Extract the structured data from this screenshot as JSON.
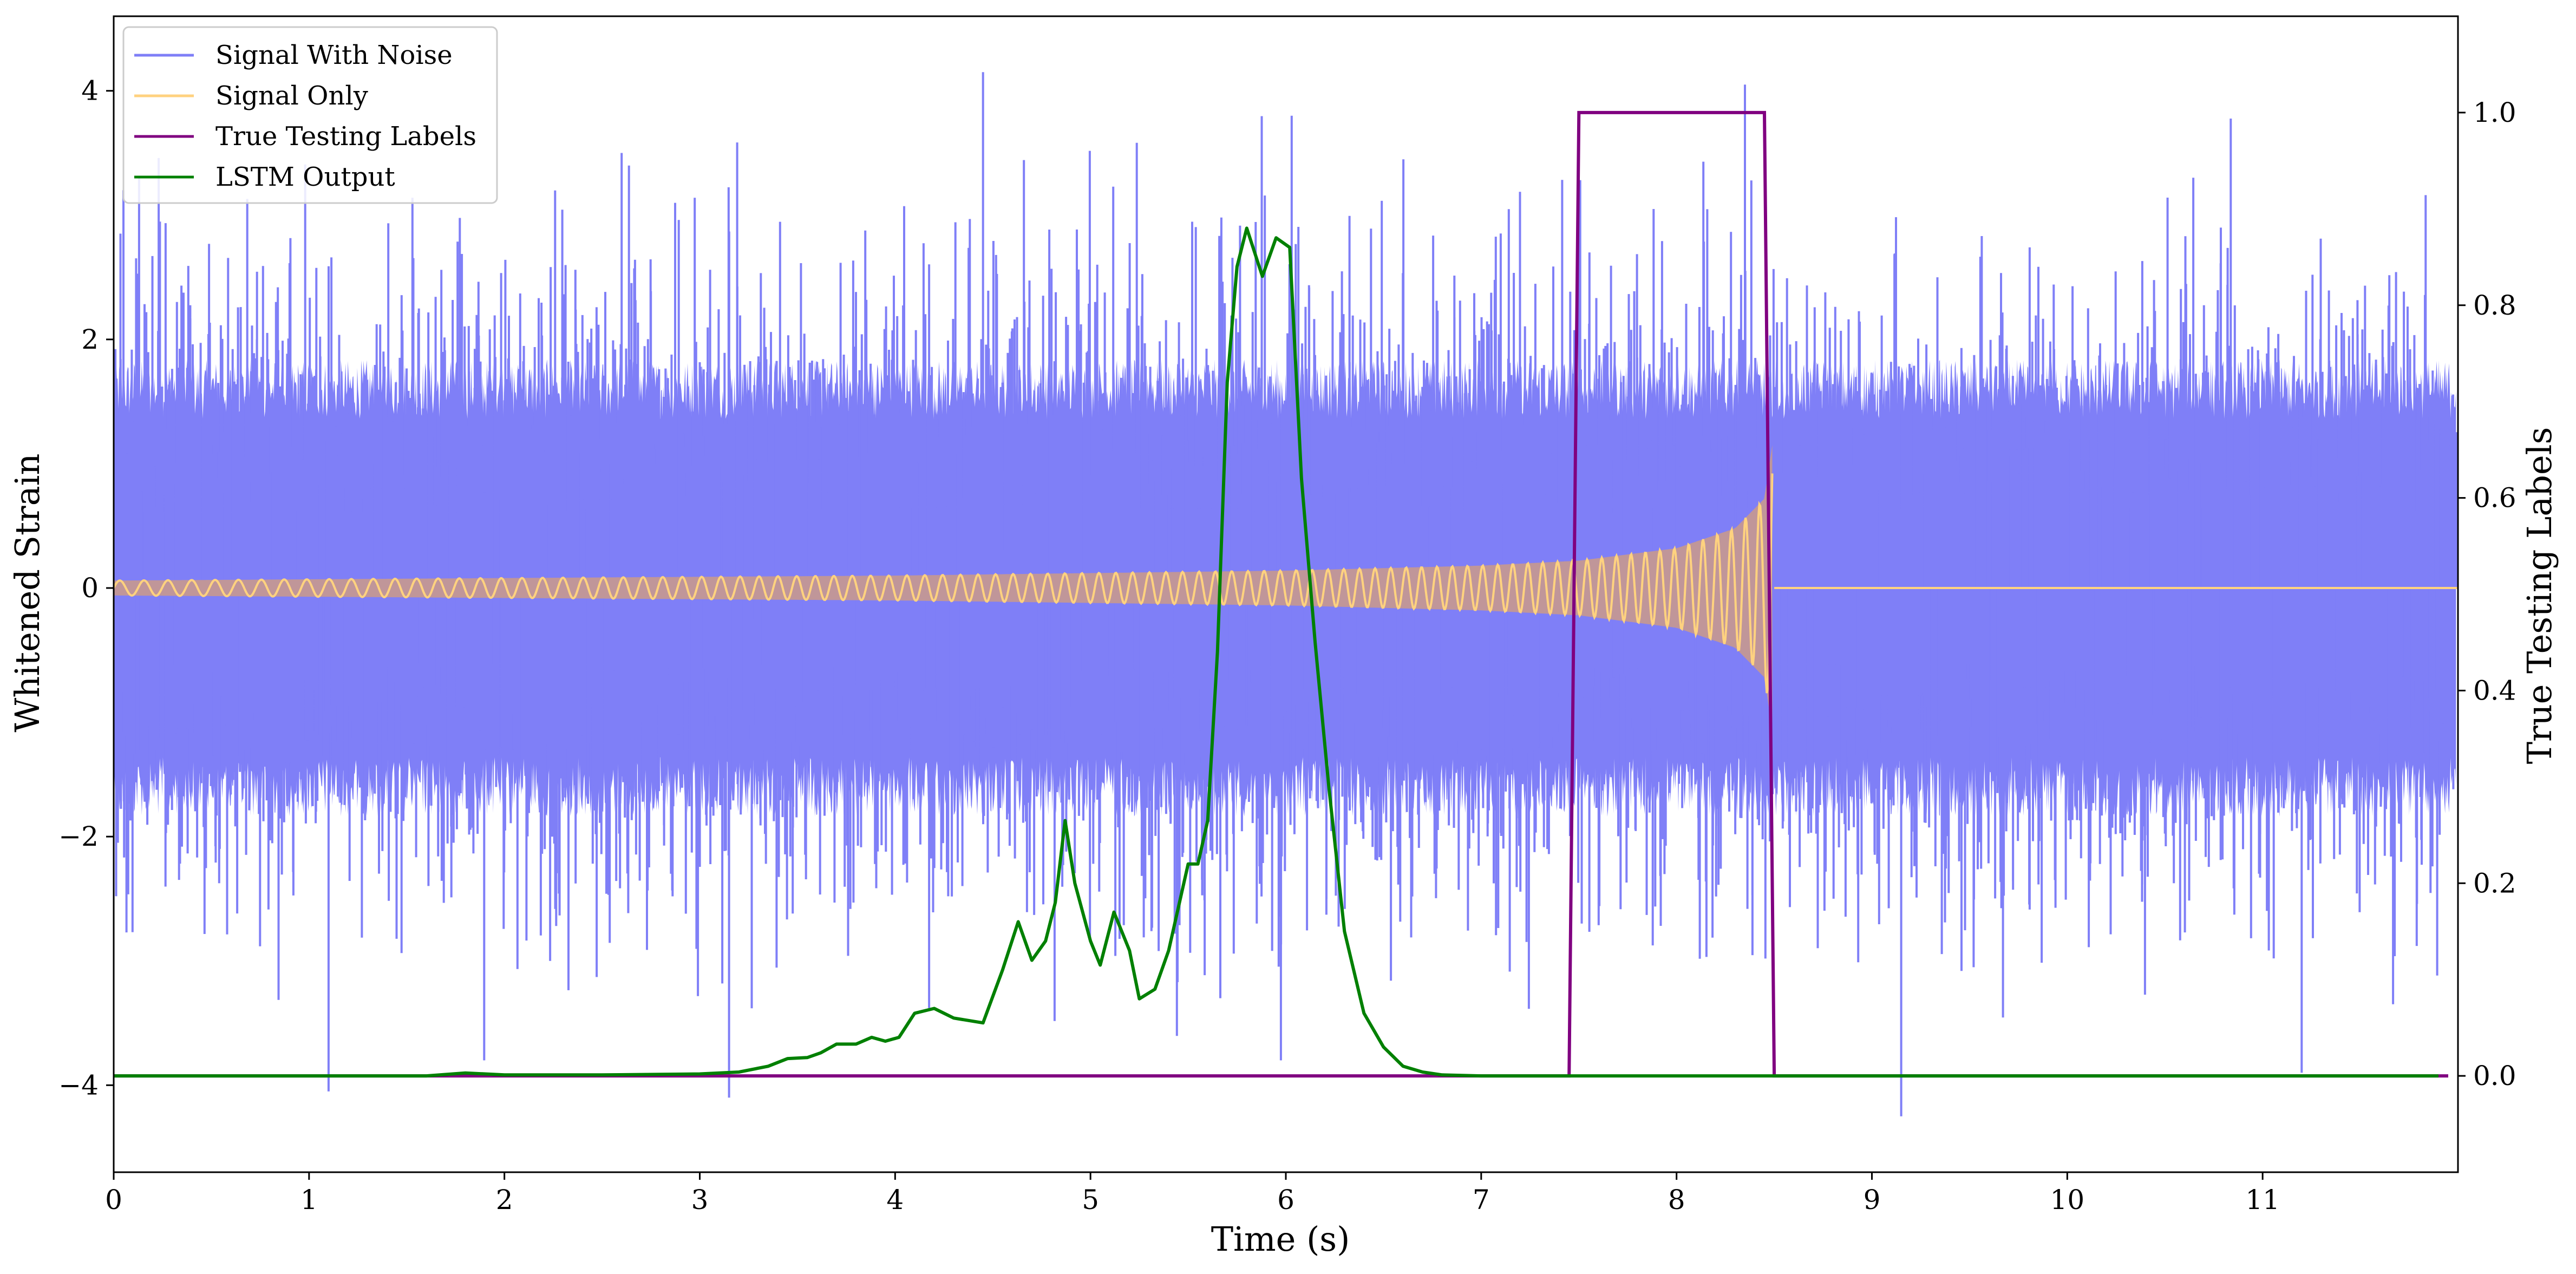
{
  "chart_data": {
    "type": "line",
    "xlabel": "Time (s)",
    "ylabel": "Whitened Strain",
    "ylabel_right": "True Testing Labels",
    "xlim": [
      0,
      12
    ],
    "ylim": [
      -4.7,
      4.6
    ],
    "ylim_right": [
      -0.1,
      1.1
    ],
    "x_ticks": [
      0,
      1,
      2,
      3,
      4,
      5,
      6,
      7,
      8,
      9,
      10,
      11
    ],
    "x_tick_labels": [
      "0",
      "1",
      "2",
      "3",
      "4",
      "5",
      "6",
      "7",
      "8",
      "9",
      "10",
      "11"
    ],
    "y_ticks": [
      -4,
      -2,
      0,
      2,
      4
    ],
    "y_tick_labels": [
      "−4",
      "−2",
      "0",
      "2",
      "4"
    ],
    "y_ticks_right": [
      0.0,
      0.2,
      0.4,
      0.6,
      0.8,
      1.0
    ],
    "y_tick_labels_right": [
      "0.0",
      "0.2",
      "0.4",
      "0.6",
      "0.8",
      "1.0"
    ],
    "grid": false,
    "legend_position": "top-left",
    "legend": [
      "Signal With Noise",
      "Signal Only",
      "True Testing Labels",
      "LSTM Output"
    ],
    "series": [
      {
        "name": "Signal With Noise",
        "axis": "left",
        "color": "#7f7ff7",
        "description_type": "noise",
        "band_amplitude": 1.6,
        "extremes": [
          [
            1.1,
            -4.05
          ],
          [
            3.15,
            -4.1
          ],
          [
            4.45,
            4.15
          ],
          [
            8.35,
            4.05
          ],
          [
            9.15,
            -4.25
          ],
          [
            11.2,
            -3.9
          ],
          [
            0.05,
            3.2
          ],
          [
            2.6,
            3.5
          ]
        ]
      },
      {
        "name": "Signal Only",
        "axis": "left",
        "color": "#ffd27f",
        "envelope": [
          [
            0,
            0.06
          ],
          [
            1,
            0.07
          ],
          [
            2,
            0.08
          ],
          [
            3,
            0.09
          ],
          [
            4,
            0.1
          ],
          [
            5,
            0.12
          ],
          [
            6,
            0.14
          ],
          [
            7,
            0.18
          ],
          [
            7.5,
            0.22
          ],
          [
            8,
            0.32
          ],
          [
            8.3,
            0.48
          ],
          [
            8.45,
            0.72
          ],
          [
            8.49,
            1.15
          ],
          [
            8.5,
            0
          ],
          [
            12,
            0
          ]
        ]
      },
      {
        "name": "True Testing Labels",
        "axis": "right",
        "color": "#800080",
        "x": [
          0,
          7.45,
          7.5,
          8.45,
          8.5,
          11.95
        ],
        "y": [
          0,
          0,
          1,
          1,
          0,
          0
        ]
      },
      {
        "name": "LSTM Output",
        "axis": "right",
        "color": "#008000",
        "x": [
          0,
          1.6,
          1.8,
          2.0,
          2.5,
          3.0,
          3.2,
          3.35,
          3.45,
          3.55,
          3.62,
          3.7,
          3.8,
          3.88,
          3.95,
          4.02,
          4.1,
          4.2,
          4.3,
          4.45,
          4.55,
          4.63,
          4.7,
          4.77,
          4.82,
          4.87,
          4.92,
          5.0,
          5.05,
          5.12,
          5.2,
          5.25,
          5.33,
          5.4,
          5.5,
          5.55,
          5.6,
          5.65,
          5.7,
          5.75,
          5.8,
          5.88,
          5.95,
          6.02,
          6.08,
          6.15,
          6.22,
          6.3,
          6.4,
          6.5,
          6.6,
          6.7,
          6.8,
          7.0,
          7.5,
          8.0,
          9.0,
          10.0,
          11.0,
          11.9
        ],
        "y": [
          0,
          0,
          0.003,
          0.001,
          0.001,
          0.002,
          0.004,
          0.01,
          0.018,
          0.019,
          0.024,
          0.033,
          0.033,
          0.04,
          0.036,
          0.04,
          0.065,
          0.07,
          0.06,
          0.055,
          0.11,
          0.16,
          0.12,
          0.14,
          0.18,
          0.265,
          0.2,
          0.14,
          0.115,
          0.17,
          0.13,
          0.08,
          0.09,
          0.13,
          0.22,
          0.22,
          0.265,
          0.44,
          0.72,
          0.84,
          0.88,
          0.83,
          0.87,
          0.86,
          0.62,
          0.45,
          0.3,
          0.15,
          0.065,
          0.03,
          0.01,
          0.004,
          0.001,
          0,
          0,
          0,
          0,
          0,
          0,
          0
        ]
      }
    ]
  }
}
